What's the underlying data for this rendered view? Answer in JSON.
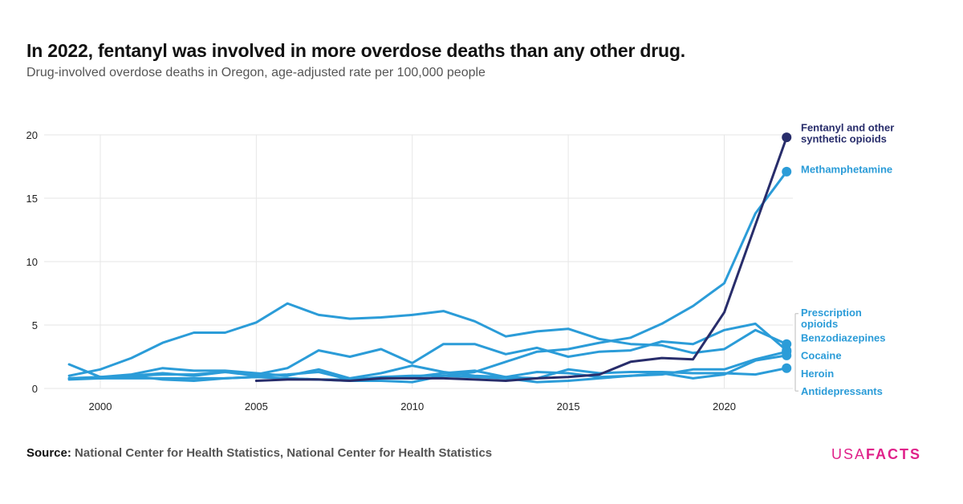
{
  "header": {
    "title": "In 2022, fentanyl was involved in more overdose deaths than any other drug.",
    "subtitle": "Drug-involved overdose deaths in Oregon, age-adjusted rate per 100,000 people"
  },
  "footer": {
    "source_label": "Source:",
    "source_text": "National Center for Health Statistics, National Center for Health Statistics",
    "brand_part1": "USA",
    "brand_part2": "FACTS"
  },
  "colors": {
    "fentanyl": "#282d6b",
    "other": "#2b9cd8",
    "grid": "#e6e6e6",
    "brand": "#e0218a"
  },
  "chart_data": {
    "type": "line",
    "x_ticks": [
      2000,
      2005,
      2010,
      2015,
      2020
    ],
    "y_ticks": [
      0,
      5,
      10,
      15,
      20
    ],
    "xlim": [
      1998.2,
      2022.2
    ],
    "ylim": [
      0,
      20
    ],
    "grid": true,
    "series": [
      {
        "name": "Fentanyl and other synthetic opioids",
        "color": "#282d6b",
        "label_lines": [
          "Fentanyl and other",
          "synthetic opioids"
        ],
        "label_y": 20.3,
        "x": [
          2005,
          2006,
          2007,
          2008,
          2009,
          2010,
          2011,
          2012,
          2013,
          2014,
          2015,
          2016,
          2017,
          2018,
          2019,
          2020,
          2021,
          2022
        ],
        "y": [
          0.6,
          0.7,
          0.7,
          0.6,
          0.8,
          0.8,
          0.8,
          0.7,
          0.6,
          0.8,
          0.9,
          1.1,
          2.1,
          2.4,
          2.3,
          6.0,
          12.9,
          19.8
        ]
      },
      {
        "name": "Methamphetamine",
        "color": "#2b9cd8",
        "label_lines": [
          "Methamphetamine"
        ],
        "label_y": 17.0,
        "x": [
          1999,
          2000,
          2001,
          2002,
          2003,
          2004,
          2005,
          2006,
          2007,
          2008,
          2009,
          2010,
          2011,
          2012,
          2013,
          2014,
          2015,
          2016,
          2017,
          2018,
          2019,
          2020,
          2021,
          2022
        ],
        "y": [
          1.0,
          1.5,
          2.4,
          3.6,
          4.4,
          4.4,
          5.2,
          6.7,
          5.8,
          5.5,
          5.6,
          5.8,
          6.1,
          5.3,
          4.1,
          4.5,
          4.7,
          3.9,
          3.5,
          3.4,
          2.8,
          3.1,
          4.6,
          3.5
        ]
      },
      {
        "name": "Prescription opioids",
        "color": "#2b9cd8",
        "label_lines": [
          "Prescription",
          "opioids"
        ],
        "label_y": 5.7,
        "x": [
          1999,
          2000,
          2001,
          2002,
          2003,
          2004,
          2005,
          2006,
          2007,
          2008,
          2009,
          2010,
          2011,
          2012,
          2013,
          2014,
          2015,
          2016,
          2017,
          2018,
          2019,
          2020,
          2021,
          2022
        ],
        "y": [
          1.9,
          0.9,
          1.1,
          1.6,
          1.4,
          1.4,
          1.2,
          1.0,
          1.5,
          0.8,
          1.2,
          1.8,
          1.3,
          1.0,
          0.9,
          0.8,
          1.5,
          1.2,
          1.3,
          1.3,
          1.2,
          1.2,
          1.1,
          1.6
        ]
      },
      {
        "name": "Benzodiazepines",
        "color": "#2b9cd8",
        "label_lines": [
          "Benzodiazepines"
        ],
        "label_y": 3.7,
        "x": [
          1999,
          2000,
          2001,
          2002,
          2003,
          2004,
          2005,
          2006,
          2007,
          2008,
          2009,
          2010,
          2011,
          2012,
          2013,
          2014,
          2015,
          2016,
          2017,
          2018,
          2019,
          2020,
          2021,
          2022
        ],
        "y": [
          0.8,
          0.9,
          1.0,
          1.2,
          1.0,
          1.3,
          1.1,
          1.6,
          3.0,
          2.5,
          3.1,
          2.0,
          3.5,
          3.5,
          2.7,
          3.2,
          2.5,
          2.9,
          3.0,
          3.7,
          3.5,
          4.6,
          5.1,
          3.0
        ]
      },
      {
        "name": "Cocaine",
        "color": "#2b9cd8",
        "label_lines": [
          "Cocaine"
        ],
        "label_y": 2.3,
        "x": [
          1999,
          2000,
          2001,
          2002,
          2003,
          2004,
          2005,
          2006,
          2007,
          2008,
          2009,
          2010,
          2011,
          2012,
          2013,
          2014,
          2015,
          2016,
          2017,
          2018,
          2019,
          2020,
          2021,
          2022
        ],
        "y": [
          0.7,
          0.8,
          1.0,
          0.7,
          0.6,
          0.8,
          0.9,
          0.8,
          0.7,
          0.6,
          0.6,
          0.5,
          1.0,
          1.3,
          2.1,
          2.9,
          3.1,
          3.6,
          4.0,
          5.1,
          6.5,
          8.3,
          13.8,
          17.1
        ]
      },
      {
        "name": "Heroin",
        "color": "#2b9cd8",
        "label_lines": [
          "Heroin"
        ],
        "label_y": 0.9,
        "x": [
          1999,
          2000,
          2001,
          2002,
          2003,
          2004,
          2005,
          2006,
          2007,
          2008,
          2009,
          2010,
          2011,
          2012,
          2013,
          2014,
          2015,
          2016,
          2017,
          2018,
          2019,
          2020,
          2021,
          2022
        ],
        "y": [
          0.8,
          0.8,
          1.0,
          1.1,
          1.1,
          1.3,
          1.0,
          1.1,
          1.3,
          0.7,
          0.8,
          0.9,
          1.2,
          1.4,
          0.9,
          1.3,
          1.2,
          0.9,
          1.0,
          1.1,
          1.5,
          1.5,
          2.3,
          2.9
        ]
      },
      {
        "name": "Antidepressants",
        "color": "#2b9cd8",
        "label_lines": [
          "Antidepressants"
        ],
        "label_y": -0.5,
        "x": [
          1999,
          2000,
          2001,
          2002,
          2003,
          2004,
          2005,
          2006,
          2007,
          2008,
          2009,
          2010,
          2011,
          2012,
          2013,
          2014,
          2015,
          2016,
          2017,
          2018,
          2019,
          2020,
          2021,
          2022
        ],
        "y": [
          0.8,
          0.8,
          0.8,
          0.8,
          0.8,
          0.8,
          0.9,
          0.8,
          0.7,
          0.7,
          0.9,
          1.0,
          1.0,
          0.9,
          0.8,
          0.5,
          0.6,
          0.8,
          1.0,
          1.2,
          0.8,
          1.1,
          2.2,
          2.6
        ]
      }
    ]
  }
}
